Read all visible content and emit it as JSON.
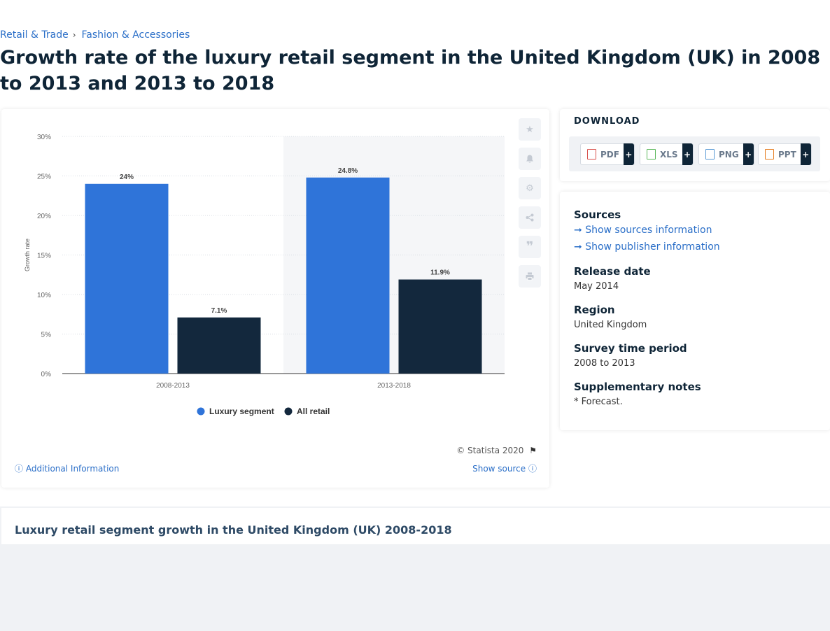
{
  "breadcrumb": {
    "item1": "Retail & Trade",
    "sep": "›",
    "item2": "Fashion & Accessories"
  },
  "title": "Growth rate of the luxury retail segment in the United Kingdom (UK) in 2008 to 2013 and 2013 to 2018",
  "chart_data": {
    "type": "bar",
    "categories": [
      "2008-2013",
      "2013-2018"
    ],
    "series": [
      {
        "name": "Luxury segment",
        "values": [
          24,
          24.8
        ],
        "labels": [
          "24%",
          "24.8%"
        ],
        "color": "#2f74d9"
      },
      {
        "name": "All retail",
        "values": [
          7.1,
          11.9
        ],
        "labels": [
          "7.1%",
          "11.9%"
        ],
        "color": "#13283d"
      }
    ],
    "ylabel": "Growth rate",
    "yticks": [
      "0%",
      "5%",
      "10%",
      "15%",
      "20%",
      "25%",
      "30%"
    ],
    "ylim": [
      0,
      30
    ],
    "grid": true,
    "legend": "bottom",
    "highlight_category": "2013-2018"
  },
  "chart_footer": {
    "copyright": "© Statista 2020",
    "additional_info": "Additional Information",
    "show_source": "Show source"
  },
  "side_icons": [
    "star-icon",
    "bell-icon",
    "gear-icon",
    "share-icon",
    "quote-icon",
    "print-icon"
  ],
  "download": {
    "title": "DOWNLOAD",
    "buttons": [
      {
        "label": "PDF",
        "plus": "+"
      },
      {
        "label": "XLS",
        "plus": "+"
      },
      {
        "label": "PNG",
        "plus": "+"
      },
      {
        "label": "PPT",
        "plus": "+"
      }
    ]
  },
  "info": {
    "sources_heading": "Sources",
    "sources_link": "Show sources information",
    "publisher_link": "Show publisher information",
    "release_heading": "Release date",
    "release_value": "May 2014",
    "region_heading": "Region",
    "region_value": "United Kingdom",
    "survey_heading": "Survey time period",
    "survey_value": "2008 to 2013",
    "notes_heading": "Supplementary notes",
    "notes_value": "* Forecast."
  },
  "bottom": {
    "title": "Luxury retail segment growth in the United Kingdom (UK) 2008-2018"
  }
}
